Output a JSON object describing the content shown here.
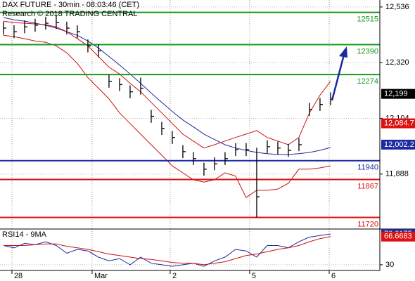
{
  "chart_data": [
    {
      "type": "ohlc",
      "title": "DAX FUTURE - 30min - 08:03:46 (CET)",
      "subtitle": "Research © 2018 TRADING CENTRAL",
      "xlim": [
        -0.33,
        35.67
      ],
      "ylim": [
        11675,
        12563
      ],
      "yticks": [
        {
          "value": 12536,
          "label": "12,536"
        },
        {
          "value": 12320,
          "label": "12,320"
        },
        {
          "value": 12104,
          "label": "12,104"
        },
        {
          "value": 11888,
          "label": "11,888"
        }
      ],
      "grid": true,
      "color": "#000000",
      "high": [
        12479,
        12465,
        12484,
        12490,
        12498,
        12501,
        12479,
        12465,
        12410,
        12391,
        12273,
        12260,
        12232,
        12262,
        12137,
        12090,
        12055,
        12000,
        11973,
        11932,
        11953,
        11973,
        12008,
        12008,
        11990,
        12019,
        12014,
        12005,
        12027,
        12164,
        12183,
        12205
      ],
      "low": [
        12429,
        12415,
        12434,
        12440,
        12448,
        12451,
        12429,
        12415,
        12360,
        12341,
        12223,
        12210,
        12182,
        12196,
        12087,
        12040,
        12005,
        11950,
        11923,
        11882,
        11903,
        11923,
        11958,
        11958,
        11720,
        11969,
        11964,
        11955,
        11977,
        12114,
        12133,
        12155
      ],
      "close": [
        12454,
        12440,
        12459,
        12465,
        12473,
        12476,
        12454,
        12440,
        12385,
        12366,
        12248,
        12235,
        12207,
        12221,
        12112,
        12065,
        12030,
        11975,
        11948,
        11907,
        11928,
        11948,
        11983,
        11983,
        11800,
        11994,
        11989,
        11980,
        12002,
        12139,
        12158,
        12180
      ],
      "lines": [
        {
          "color": "#1c2aa0",
          "values": [
            12495,
            12486,
            12481,
            12473,
            12465,
            12454,
            12440,
            12426,
            12404,
            12377,
            12344,
            12311,
            12276,
            12240,
            12202,
            12166,
            12131,
            12098,
            12071,
            12043,
            12022,
            12002,
            11989,
            11980,
            11972,
            11967,
            11964,
            11964,
            11967,
            11972,
            11980,
            11991
          ]
        },
        {
          "color": "#cc1111",
          "values": [
            12481,
            12475,
            12473,
            12470,
            12467,
            12459,
            12440,
            12413,
            12385,
            12344,
            12303,
            12276,
            12240,
            12207,
            12166,
            12125,
            12084,
            12043,
            12016,
            11989,
            12002,
            12016,
            12030,
            12043,
            12057,
            12030,
            12016,
            12002,
            12030,
            12125,
            12194,
            12248
          ]
        },
        {
          "color": "#cc1111",
          "values": [
            12426,
            12421,
            12413,
            12404,
            12399,
            12385,
            12358,
            12317,
            12262,
            12221,
            12180,
            12125,
            12084,
            12043,
            12002,
            11961,
            11920,
            11893,
            11866,
            11857,
            11866,
            11893,
            11880,
            11797,
            11825,
            11825,
            11830,
            11852,
            11907,
            11907,
            11912,
            11920
          ]
        }
      ],
      "levels": [
        {
          "value": 12515,
          "color": "#1a9a1a"
        },
        {
          "value": 12390,
          "color": "#1a9a1a"
        },
        {
          "value": 12274,
          "color": "#1a9a1a"
        },
        {
          "value": 11940,
          "color": "#1c2aa0"
        },
        {
          "value": 11867,
          "color": "#dd1111"
        },
        {
          "value": 11720,
          "color": "#dd1111"
        }
      ],
      "markers": [
        {
          "value": 12199,
          "label": "12,199",
          "color": "#000000"
        },
        {
          "value": 12084.7,
          "label": "12,084.7",
          "color": "#dd1111"
        },
        {
          "value": 12002.2,
          "label": "12,002.2",
          "color": "#1c2aa0"
        }
      ]
    },
    {
      "type": "line",
      "title": "RSI14 - 9MA",
      "xlim": [
        -0.33,
        35.67
      ],
      "ylim": [
        22.6,
        76.5
      ],
      "yticks": [
        30
      ],
      "xticks": [
        {
          "value": 0.8,
          "label": "28"
        },
        {
          "value": 8.4,
          "label": "Mar"
        },
        {
          "value": 15.8,
          "label": "2"
        },
        {
          "value": 23.33,
          "label": "5"
        },
        {
          "value": 30.87,
          "label": "6"
        }
      ],
      "lines": [
        {
          "color": "#1c2aa0",
          "values": [
            55,
            52,
            58,
            56,
            60,
            55,
            45,
            50,
            48,
            40,
            35,
            38,
            30,
            40,
            32,
            30,
            28,
            30,
            32,
            28,
            35,
            40,
            50,
            48,
            40,
            55,
            55,
            52,
            60,
            66,
            68,
            70.0175
          ]
        },
        {
          "color": "#cc1111",
          "values": [
            55,
            55,
            55,
            56,
            57,
            57,
            54,
            52,
            50,
            47,
            44,
            42,
            40,
            38,
            37,
            35,
            33,
            32,
            32,
            30,
            32,
            34,
            38,
            42,
            44,
            47,
            50,
            52,
            55,
            60,
            64,
            66.6683
          ]
        }
      ],
      "markers": [
        {
          "value": 70.0175,
          "color": "#1c2aa0"
        },
        {
          "value": 66.6683,
          "color": "#dd1111"
        }
      ]
    }
  ]
}
